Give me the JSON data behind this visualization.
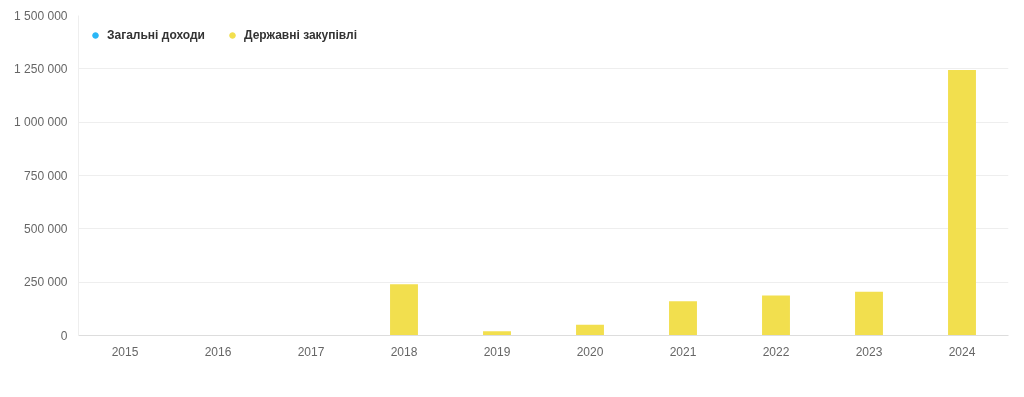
{
  "chart_data": {
    "type": "bar",
    "categories": [
      "2015",
      "2016",
      "2017",
      "2018",
      "2019",
      "2020",
      "2021",
      "2022",
      "2023",
      "2024"
    ],
    "series": [
      {
        "name": "Загальні доходи",
        "color": "#29b6f6",
        "values": [
          null,
          null,
          null,
          null,
          null,
          null,
          null,
          null,
          null,
          null
        ]
      },
      {
        "name": "Державні закупівлі",
        "color": "#f2df4e",
        "values": [
          null,
          null,
          null,
          240000,
          20000,
          50000,
          160000,
          188000,
          205000,
          1245000
        ]
      }
    ],
    "ylim": [
      0,
      1500000
    ],
    "yticks": [
      {
        "value": 0,
        "label": "0"
      },
      {
        "value": 250000,
        "label": "250 000"
      },
      {
        "value": 500000,
        "label": "500 000"
      },
      {
        "value": 750000,
        "label": "750 000"
      },
      {
        "value": 1000000,
        "label": "1 000 000"
      },
      {
        "value": 1250000,
        "label": "1 250 000"
      },
      {
        "value": 1500000,
        "label": "1 500 000"
      }
    ],
    "grid": "y",
    "legend": "top left"
  }
}
